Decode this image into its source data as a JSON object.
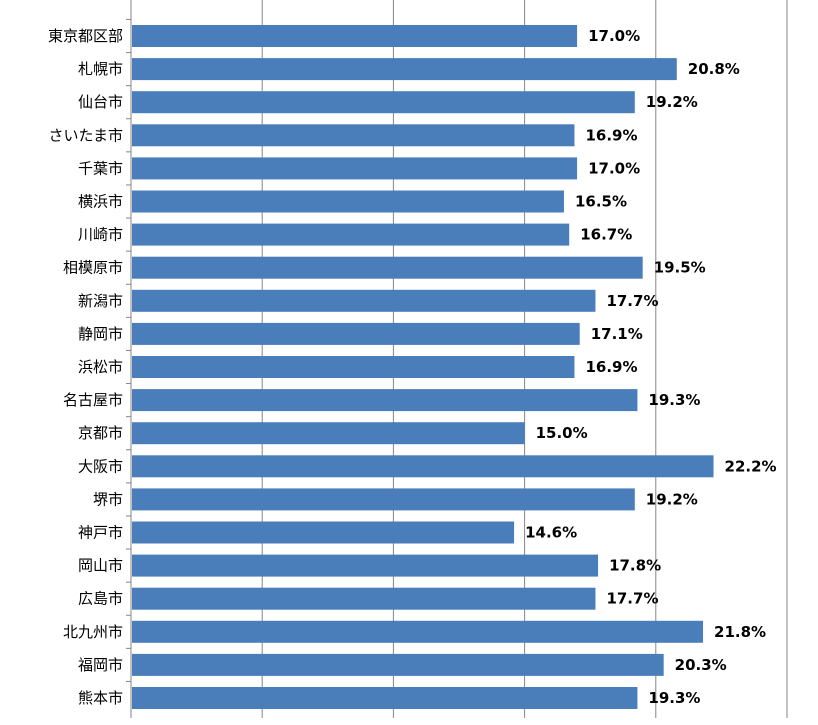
{
  "chart_data": {
    "type": "bar",
    "orientation": "horizontal",
    "categories": [
      "東京都区部",
      "札幌市",
      "仙台市",
      "さいたま市",
      "千葉市",
      "横浜市",
      "川崎市",
      "相模原市",
      "新潟市",
      "静岡市",
      "浜松市",
      "名古屋市",
      "京都市",
      "大阪市",
      "堺市",
      "神戸市",
      "岡山市",
      "広島市",
      "北九州市",
      "福岡市",
      "熊本市"
    ],
    "values": [
      17.0,
      20.8,
      19.2,
      16.9,
      17.0,
      16.5,
      16.7,
      19.5,
      17.7,
      17.1,
      16.9,
      19.3,
      15.0,
      22.2,
      19.2,
      14.6,
      17.8,
      17.7,
      21.8,
      20.3,
      19.3
    ],
    "value_labels": [
      "17.0%",
      "20.8%",
      "19.2%",
      "16.9%",
      "17.0%",
      "16.5%",
      "16.7%",
      "19.5%",
      "17.7%",
      "17.1%",
      "16.9%",
      "19.3%",
      "15.0%",
      "22.2%",
      "19.2%",
      "14.6%",
      "17.8%",
      "17.7%",
      "21.8%",
      "20.3%",
      "19.3%"
    ],
    "xlim": [
      0,
      25
    ],
    "grid": true,
    "bar_color": "#4A7EBB",
    "grid_color": "#868686",
    "legend": "none"
  }
}
